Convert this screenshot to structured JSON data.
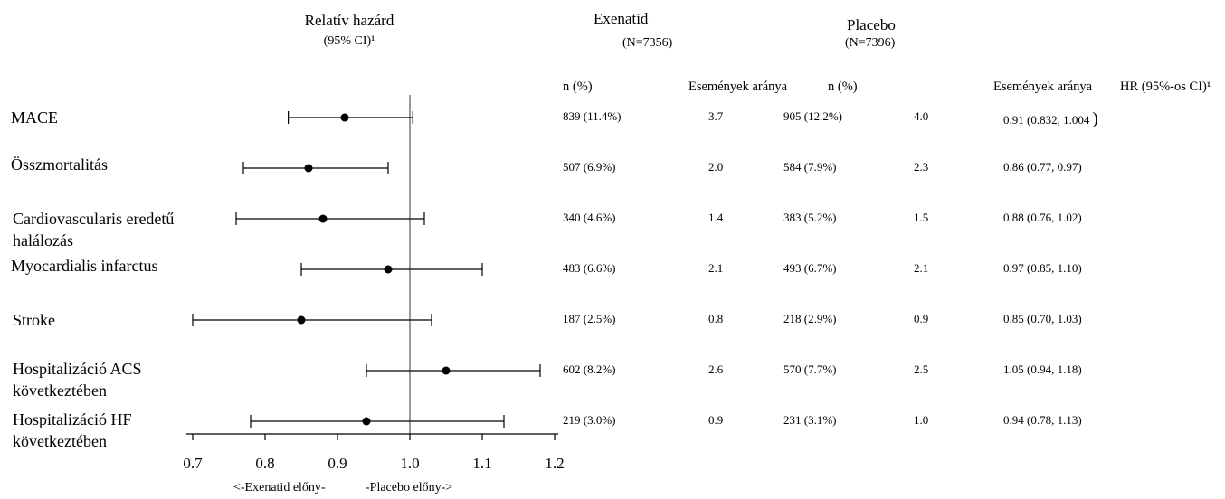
{
  "headers": {
    "plot_title": "Relatív hazárd",
    "plot_subtitle": "(95% CI)¹",
    "exenatid_title": "Exenatid",
    "exenatid_n": "(N=7356)",
    "placebo_title": "Placebo",
    "placebo_n": "(N=7396)"
  },
  "columns": {
    "exe_n": "n (%)",
    "exe_rate": "Események aránya",
    "pla_n": "n (%)",
    "pla_rate": "Események aránya",
    "hr": "HR (95%-os CI)¹"
  },
  "axis": {
    "direction_left": "<-Exenatid előny-",
    "direction_right": "-Placebo előny->"
  },
  "chart_data": {
    "type": "forest",
    "reference_line": 1.0,
    "xlim": [
      0.7,
      1.2
    ],
    "xticks": [
      "0.7",
      "0.8",
      "0.9",
      "1.0",
      "1.1",
      "1.2"
    ],
    "rows": [
      {
        "label": "MACE",
        "hr": 0.91,
        "lo": 0.832,
        "hi": 1.004,
        "exe_n": "839 (11.4%)",
        "exe_rate": "3.7",
        "pla_n": "905 (12.2%)",
        "pla_rate": "4.0",
        "hr_text": "0.91 (0.832, 1.004",
        "hr_tail": ")"
      },
      {
        "label": "Összmortalitás",
        "hr": 0.86,
        "lo": 0.77,
        "hi": 0.97,
        "exe_n": "507 (6.9%)",
        "exe_rate": "2.0",
        "pla_n": "584 (7.9%)",
        "pla_rate": "2.3",
        "hr_text": "0.86 (0.77, 0.97)",
        "hr_tail": ""
      },
      {
        "label": "Cardiovascularis eredetű halálozás",
        "hr": 0.88,
        "lo": 0.76,
        "hi": 1.02,
        "exe_n": "340 (4.6%)",
        "exe_rate": "1.4",
        "pla_n": "383 (5.2%)",
        "pla_rate": "1.5",
        "hr_text": "0.88 (0.76, 1.02)",
        "hr_tail": ""
      },
      {
        "label": "Myocardialis infarctus",
        "hr": 0.97,
        "lo": 0.85,
        "hi": 1.1,
        "exe_n": "483 (6.6%)",
        "exe_rate": "2.1",
        "pla_n": "493 (6.7%)",
        "pla_rate": "2.1",
        "hr_text": "0.97 (0.85, 1.10)",
        "hr_tail": ""
      },
      {
        "label": "Stroke",
        "hr": 0.85,
        "lo": 0.7,
        "hi": 1.03,
        "exe_n": "187 (2.5%)",
        "exe_rate": "0.8",
        "pla_n": "218 (2.9%)",
        "pla_rate": "0.9",
        "hr_text": "0.85 (0.70, 1.03)",
        "hr_tail": ""
      },
      {
        "label": "Hospitalizáció ACS következtében",
        "hr": 1.05,
        "lo": 0.94,
        "hi": 1.18,
        "exe_n": "602 (8.2%)",
        "exe_rate": "2.6",
        "pla_n": "570 (7.7%)",
        "pla_rate": "2.5",
        "hr_text": "1.05 (0.94, 1.18)",
        "hr_tail": ""
      },
      {
        "label": "Hospitalizáció HF következtében",
        "hr": 0.94,
        "lo": 0.78,
        "hi": 1.13,
        "exe_n": "219 (3.0%)",
        "exe_rate": "0.9",
        "pla_n": "231 (3.1%)",
        "pla_rate": "1.0",
        "hr_text": "0.94 (0.78, 1.13)",
        "hr_tail": ""
      }
    ]
  }
}
